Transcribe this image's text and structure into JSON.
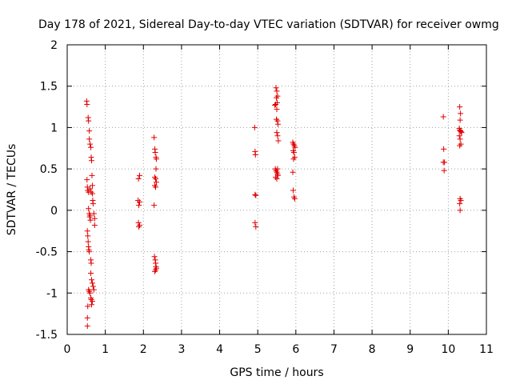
{
  "chart_data": {
    "type": "scatter",
    "title": "Day 178 of 2021, Sidereal Day-to-day VTEC variation (SDTVAR) for receiver owmg",
    "xlabel": "GPS time / hours",
    "ylabel": "SDTVAR / TECUs",
    "xlim": [
      0,
      11
    ],
    "ylim": [
      -1.5,
      2
    ],
    "x_ticks": [
      0,
      1,
      2,
      3,
      4,
      5,
      6,
      7,
      8,
      9,
      10,
      11
    ],
    "x_tick_labels": [
      "0",
      "1",
      "2",
      "3",
      "4",
      "5",
      "6",
      "7",
      "8",
      "9",
      "10",
      "11"
    ],
    "y_ticks": [
      -1.5,
      -1,
      -0.5,
      0,
      0.5,
      1,
      1.5,
      2
    ],
    "y_tick_labels": [
      "-1.5",
      "-1",
      "-0.5",
      "0",
      "0.5",
      "1",
      "1.5",
      "2"
    ],
    "grid": true,
    "marker": "+",
    "marker_color": "#e00000",
    "series": [
      {
        "name": "SDTVAR",
        "points": [
          [
            0.51,
            1.32
          ],
          [
            0.52,
            1.28
          ],
          [
            0.55,
            1.12
          ],
          [
            0.56,
            1.08
          ],
          [
            0.58,
            0.96
          ],
          [
            0.58,
            0.86
          ],
          [
            0.6,
            0.8
          ],
          [
            0.62,
            0.76
          ],
          [
            0.63,
            0.64
          ],
          [
            0.64,
            0.6
          ],
          [
            0.65,
            0.42
          ],
          [
            0.66,
            0.3
          ],
          [
            0.52,
            0.37
          ],
          [
            0.53,
            0.28
          ],
          [
            0.54,
            0.24
          ],
          [
            0.56,
            0.22
          ],
          [
            0.6,
            0.26
          ],
          [
            0.63,
            0.22
          ],
          [
            0.66,
            0.2
          ],
          [
            0.67,
            0.12
          ],
          [
            0.68,
            0.08
          ],
          [
            0.7,
            -0.04
          ],
          [
            0.72,
            -0.1
          ],
          [
            0.72,
            -0.18
          ],
          [
            0.56,
            0.02
          ],
          [
            0.58,
            -0.04
          ],
          [
            0.59,
            -0.08
          ],
          [
            0.6,
            -0.06
          ],
          [
            0.61,
            -0.12
          ],
          [
            0.53,
            -0.25
          ],
          [
            0.54,
            -0.31
          ],
          [
            0.55,
            -0.38
          ],
          [
            0.56,
            -0.44
          ],
          [
            0.57,
            -0.48
          ],
          [
            0.58,
            -0.5
          ],
          [
            0.62,
            -0.6
          ],
          [
            0.63,
            -0.64
          ],
          [
            0.56,
            -0.96
          ],
          [
            0.58,
            -0.98
          ],
          [
            0.6,
            -1.0
          ],
          [
            0.62,
            -1.06
          ],
          [
            0.63,
            -1.08
          ],
          [
            0.64,
            -0.84
          ],
          [
            0.66,
            -0.88
          ],
          [
            0.68,
            -0.92
          ],
          [
            0.7,
            -0.96
          ],
          [
            0.66,
            -1.1
          ],
          [
            0.64,
            -1.14
          ],
          [
            0.54,
            -1.16
          ],
          [
            0.53,
            -1.3
          ],
          [
            0.53,
            -1.4
          ],
          [
            0.62,
            -0.76
          ],
          [
            1.87,
            0.38
          ],
          [
            1.9,
            0.42
          ],
          [
            1.86,
            0.12
          ],
          [
            1.88,
            0.06
          ],
          [
            1.9,
            0.1
          ],
          [
            1.87,
            -0.15
          ],
          [
            1.88,
            -0.2
          ],
          [
            1.9,
            -0.18
          ],
          [
            2.28,
            0.88
          ],
          [
            2.3,
            0.74
          ],
          [
            2.31,
            0.7
          ],
          [
            2.33,
            0.64
          ],
          [
            2.34,
            0.62
          ],
          [
            2.33,
            0.5
          ],
          [
            2.3,
            0.4
          ],
          [
            2.32,
            0.38
          ],
          [
            2.34,
            0.34
          ],
          [
            2.3,
            0.3
          ],
          [
            2.32,
            0.28
          ],
          [
            2.28,
            0.06
          ],
          [
            2.29,
            -0.56
          ],
          [
            2.31,
            -0.6
          ],
          [
            2.32,
            -0.64
          ],
          [
            2.33,
            -0.68
          ],
          [
            2.34,
            -0.7
          ],
          [
            2.32,
            -0.72
          ],
          [
            2.3,
            -0.74
          ],
          [
            4.92,
            1.0
          ],
          [
            4.93,
            0.71
          ],
          [
            4.94,
            0.67
          ],
          [
            4.93,
            0.19
          ],
          [
            4.95,
            0.18
          ],
          [
            4.93,
            -0.15
          ],
          [
            4.95,
            -0.2
          ],
          [
            5.48,
            1.48
          ],
          [
            5.5,
            1.44
          ],
          [
            5.52,
            1.38
          ],
          [
            5.49,
            1.36
          ],
          [
            5.51,
            1.3
          ],
          [
            5.47,
            1.28
          ],
          [
            5.45,
            1.27
          ],
          [
            5.5,
            1.22
          ],
          [
            5.49,
            1.1
          ],
          [
            5.52,
            1.08
          ],
          [
            5.53,
            1.04
          ],
          [
            5.5,
            0.94
          ],
          [
            5.52,
            0.9
          ],
          [
            5.54,
            0.84
          ],
          [
            5.46,
            0.5
          ],
          [
            5.48,
            0.48
          ],
          [
            5.5,
            0.46
          ],
          [
            5.52,
            0.44
          ],
          [
            5.53,
            0.42
          ],
          [
            5.47,
            0.4
          ],
          [
            5.5,
            0.38
          ],
          [
            5.52,
            0.5
          ],
          [
            5.92,
            0.82
          ],
          [
            5.94,
            0.8
          ],
          [
            5.96,
            0.78
          ],
          [
            5.98,
            0.76
          ],
          [
            5.93,
            0.72
          ],
          [
            5.95,
            0.7
          ],
          [
            5.97,
            0.64
          ],
          [
            5.94,
            0.62
          ],
          [
            5.92,
            0.46
          ],
          [
            5.93,
            0.24
          ],
          [
            5.95,
            0.16
          ],
          [
            5.97,
            0.14
          ],
          [
            9.87,
            1.13
          ],
          [
            9.88,
            0.74
          ],
          [
            9.87,
            0.58
          ],
          [
            9.9,
            0.58
          ],
          [
            9.89,
            0.48
          ],
          [
            10.3,
            1.25
          ],
          [
            10.32,
            1.17
          ],
          [
            10.31,
            1.09
          ],
          [
            10.29,
            0.99
          ],
          [
            10.3,
            0.97
          ],
          [
            10.32,
            0.96
          ],
          [
            10.33,
            0.95
          ],
          [
            10.35,
            0.94
          ],
          [
            10.29,
            0.9
          ],
          [
            10.31,
            0.86
          ],
          [
            10.33,
            0.8
          ],
          [
            10.3,
            0.78
          ],
          [
            10.31,
            0.14
          ],
          [
            10.33,
            0.12
          ],
          [
            10.3,
            0.08
          ],
          [
            10.31,
            0.0
          ]
        ]
      }
    ]
  }
}
